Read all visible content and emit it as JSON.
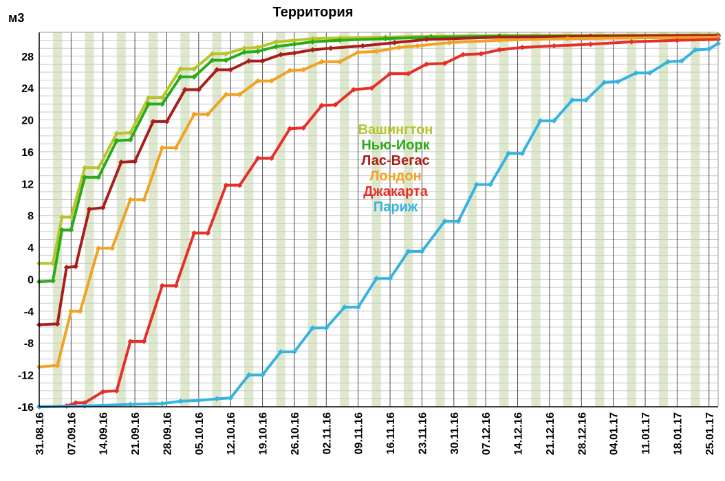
{
  "chart_data": {
    "type": "line",
    "title": "Территория",
    "ylabel": "м3",
    "xlabel": "",
    "ylim": [
      -16,
      31
    ],
    "yticks": [
      -16,
      -12,
      -8,
      -4,
      0,
      4,
      8,
      12,
      16,
      20,
      24,
      28
    ],
    "xlim": [
      "2016-08-31",
      "2017-01-27"
    ],
    "xticks": [
      "31.08.16",
      "07.09.16",
      "14.09.16",
      "21.09.16",
      "28.09.16",
      "05.10.16",
      "12.10.16",
      "19.10.16",
      "26.10.16",
      "02.11.16",
      "09.11.16",
      "16.11.16",
      "23.11.16",
      "30.11.16",
      "07.12.16",
      "14.12.16",
      "21.12.16",
      "28.12.16",
      "04.01.17",
      "11.01.17",
      "18.01.17",
      "25.01.17"
    ],
    "grid": true,
    "shaded_weekends": true,
    "legend_position": "center",
    "series": [
      {
        "name": "Вашингтон",
        "color": "#b9c42a",
        "points": [
          [
            "2016-08-31",
            2
          ],
          [
            "2016-09-03",
            2
          ],
          [
            "2016-09-05",
            7.8
          ],
          [
            "2016-09-07",
            7.8
          ],
          [
            "2016-09-10",
            14
          ],
          [
            "2016-09-13",
            14
          ],
          [
            "2016-09-17",
            18.3
          ],
          [
            "2016-09-20",
            18.4
          ],
          [
            "2016-09-24",
            22.8
          ],
          [
            "2016-09-27",
            22.8
          ],
          [
            "2016-10-01",
            26.4
          ],
          [
            "2016-10-04",
            26.4
          ],
          [
            "2016-10-08",
            28.3
          ],
          [
            "2016-10-11",
            28.3
          ],
          [
            "2016-10-15",
            29
          ],
          [
            "2016-10-18",
            29.1
          ],
          [
            "2016-10-22",
            29.8
          ],
          [
            "2016-10-26",
            30
          ],
          [
            "2016-10-30",
            30.2
          ],
          [
            "2016-11-05",
            30.3
          ],
          [
            "2016-11-15",
            30.4
          ],
          [
            "2016-11-25",
            30.5
          ],
          [
            "2016-12-10",
            30.6
          ],
          [
            "2017-01-27",
            30.7
          ]
        ]
      },
      {
        "name": "Нью-Иорк",
        "color": "#2aab18",
        "points": [
          [
            "2016-08-31",
            -0.3
          ],
          [
            "2016-09-03",
            -0.2
          ],
          [
            "2016-09-05",
            6.2
          ],
          [
            "2016-09-07",
            6.2
          ],
          [
            "2016-09-10",
            12.8
          ],
          [
            "2016-09-13",
            12.8
          ],
          [
            "2016-09-17",
            17.4
          ],
          [
            "2016-09-20",
            17.5
          ],
          [
            "2016-09-24",
            22
          ],
          [
            "2016-09-27",
            22
          ],
          [
            "2016-10-01",
            25.4
          ],
          [
            "2016-10-04",
            25.4
          ],
          [
            "2016-10-08",
            27.5
          ],
          [
            "2016-10-11",
            27.5
          ],
          [
            "2016-10-15",
            28.5
          ],
          [
            "2016-10-18",
            28.6
          ],
          [
            "2016-10-22",
            29.2
          ],
          [
            "2016-10-26",
            29.5
          ],
          [
            "2016-10-30",
            29.8
          ],
          [
            "2016-11-05",
            30
          ],
          [
            "2016-11-15",
            30.2
          ],
          [
            "2016-11-25",
            30.4
          ],
          [
            "2016-12-10",
            30.5
          ],
          [
            "2017-01-27",
            30.6
          ]
        ]
      },
      {
        "name": "Лас-Вегас",
        "color": "#a71e1a",
        "points": [
          [
            "2016-08-31",
            -5.7
          ],
          [
            "2016-09-04",
            -5.6
          ],
          [
            "2016-09-06",
            1.5
          ],
          [
            "2016-09-08",
            1.6
          ],
          [
            "2016-09-11",
            8.8
          ],
          [
            "2016-09-14",
            9
          ],
          [
            "2016-09-18",
            14.7
          ],
          [
            "2016-09-21",
            14.8
          ],
          [
            "2016-09-25",
            19.8
          ],
          [
            "2016-09-28",
            19.8
          ],
          [
            "2016-10-02",
            23.8
          ],
          [
            "2016-10-05",
            23.8
          ],
          [
            "2016-10-09",
            26.3
          ],
          [
            "2016-10-12",
            26.3
          ],
          [
            "2016-10-16",
            27.4
          ],
          [
            "2016-10-19",
            27.4
          ],
          [
            "2016-10-23",
            28.2
          ],
          [
            "2016-10-26",
            28.4
          ],
          [
            "2016-10-30",
            28.8
          ],
          [
            "2016-11-03",
            29
          ],
          [
            "2016-11-10",
            29.3
          ],
          [
            "2016-11-17",
            29.7
          ],
          [
            "2016-11-24",
            30.1
          ],
          [
            "2016-12-10",
            30.4
          ],
          [
            "2016-12-30",
            30.5
          ],
          [
            "2017-01-27",
            30.6
          ]
        ]
      },
      {
        "name": "Лондон",
        "color": "#f0a223",
        "points": [
          [
            "2016-08-31",
            -11
          ],
          [
            "2016-09-04",
            -10.8
          ],
          [
            "2016-09-07",
            -4
          ],
          [
            "2016-09-09",
            -4
          ],
          [
            "2016-09-13",
            3.9
          ],
          [
            "2016-09-16",
            3.9
          ],
          [
            "2016-09-20",
            10
          ],
          [
            "2016-09-23",
            10
          ],
          [
            "2016-09-27",
            16.5
          ],
          [
            "2016-09-30",
            16.5
          ],
          [
            "2016-10-04",
            20.7
          ],
          [
            "2016-10-07",
            20.7
          ],
          [
            "2016-10-11",
            23.2
          ],
          [
            "2016-10-14",
            23.2
          ],
          [
            "2016-10-18",
            24.9
          ],
          [
            "2016-10-21",
            24.9
          ],
          [
            "2016-10-25",
            26.2
          ],
          [
            "2016-10-28",
            26.3
          ],
          [
            "2016-11-01",
            27.3
          ],
          [
            "2016-11-05",
            27.3
          ],
          [
            "2016-11-09",
            28.5
          ],
          [
            "2016-11-13",
            28.6
          ],
          [
            "2016-11-18",
            29.1
          ],
          [
            "2016-11-22",
            29.3
          ],
          [
            "2016-11-29",
            29.7
          ],
          [
            "2016-12-10",
            30
          ],
          [
            "2016-12-25",
            30.2
          ],
          [
            "2017-01-27",
            30.4
          ]
        ]
      },
      {
        "name": "Джакарта",
        "color": "#e5302a",
        "points": [
          [
            "2016-08-31",
            -16
          ],
          [
            "2016-09-06",
            -15.9
          ],
          [
            "2016-09-08",
            -15.5
          ],
          [
            "2016-09-10",
            -15.5
          ],
          [
            "2016-09-14",
            -14.1
          ],
          [
            "2016-09-17",
            -14
          ],
          [
            "2016-09-20",
            -7.8
          ],
          [
            "2016-09-23",
            -7.8
          ],
          [
            "2016-09-27",
            -0.8
          ],
          [
            "2016-09-30",
            -0.8
          ],
          [
            "2016-10-04",
            5.8
          ],
          [
            "2016-10-07",
            5.8
          ],
          [
            "2016-10-11",
            11.8
          ],
          [
            "2016-10-14",
            11.8
          ],
          [
            "2016-10-18",
            15.2
          ],
          [
            "2016-10-21",
            15.2
          ],
          [
            "2016-10-25",
            18.9
          ],
          [
            "2016-10-28",
            19
          ],
          [
            "2016-11-01",
            21.8
          ],
          [
            "2016-11-04",
            21.9
          ],
          [
            "2016-11-08",
            23.8
          ],
          [
            "2016-11-12",
            24
          ],
          [
            "2016-11-16",
            25.8
          ],
          [
            "2016-11-20",
            25.8
          ],
          [
            "2016-11-24",
            27
          ],
          [
            "2016-11-28",
            27.1
          ],
          [
            "2016-12-02",
            28.2
          ],
          [
            "2016-12-06",
            28.3
          ],
          [
            "2016-12-10",
            28.8
          ],
          [
            "2016-12-15",
            29.1
          ],
          [
            "2016-12-22",
            29.3
          ],
          [
            "2016-12-30",
            29.5
          ],
          [
            "2017-01-08",
            29.8
          ],
          [
            "2017-01-18",
            30
          ],
          [
            "2017-01-27",
            30.1
          ]
        ]
      },
      {
        "name": "Париж",
        "color": "#35b4e0",
        "points": [
          [
            "2016-08-31",
            -16
          ],
          [
            "2016-09-10",
            -15.9
          ],
          [
            "2016-09-20",
            -15.7
          ],
          [
            "2016-09-27",
            -15.6
          ],
          [
            "2016-10-01",
            -15.3
          ],
          [
            "2016-10-05",
            -15.2
          ],
          [
            "2016-10-09",
            -15
          ],
          [
            "2016-10-12",
            -14.9
          ],
          [
            "2016-10-16",
            -12
          ],
          [
            "2016-10-19",
            -12
          ],
          [
            "2016-10-23",
            -9.1
          ],
          [
            "2016-10-26",
            -9.1
          ],
          [
            "2016-10-30",
            -6.1
          ],
          [
            "2016-11-02",
            -6.1
          ],
          [
            "2016-11-06",
            -3.5
          ],
          [
            "2016-11-09",
            -3.5
          ],
          [
            "2016-11-13",
            0.1
          ],
          [
            "2016-11-16",
            0.1
          ],
          [
            "2016-11-20",
            3.5
          ],
          [
            "2016-11-23",
            3.5
          ],
          [
            "2016-11-28",
            7.3
          ],
          [
            "2016-12-01",
            7.3
          ],
          [
            "2016-12-05",
            11.9
          ],
          [
            "2016-12-08",
            11.9
          ],
          [
            "2016-12-12",
            15.8
          ],
          [
            "2016-12-15",
            15.8
          ],
          [
            "2016-12-19",
            19.9
          ],
          [
            "2016-12-22",
            19.9
          ],
          [
            "2016-12-26",
            22.5
          ],
          [
            "2016-12-29",
            22.5
          ],
          [
            "2017-01-02",
            24.7
          ],
          [
            "2017-01-05",
            24.8
          ],
          [
            "2017-01-09",
            25.9
          ],
          [
            "2017-01-12",
            25.9
          ],
          [
            "2017-01-16",
            27.3
          ],
          [
            "2017-01-19",
            27.4
          ],
          [
            "2017-01-22",
            28.8
          ],
          [
            "2017-01-25",
            28.9
          ],
          [
            "2017-01-27",
            29.6
          ]
        ]
      }
    ]
  }
}
